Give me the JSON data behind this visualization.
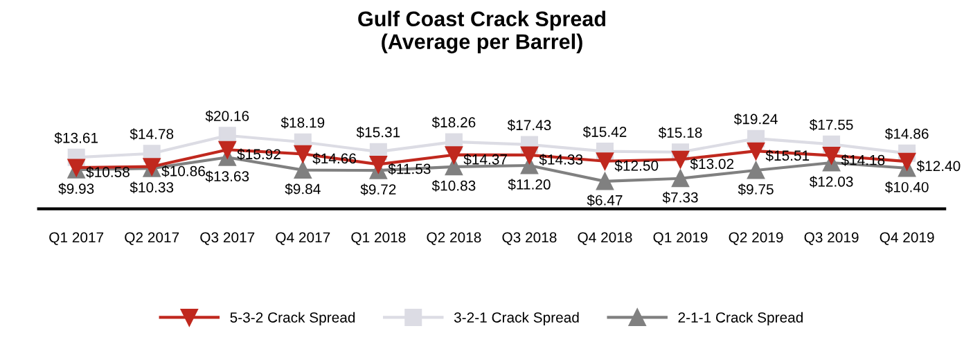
{
  "chart_data": {
    "type": "line",
    "title": "Gulf Coast Crack Spread\n(Average per Barrel)",
    "categories": [
      "Q1 2017",
      "Q2 2017",
      "Q3 2017",
      "Q4 2017",
      "Q1 2018",
      "Q2 2018",
      "Q3 2018",
      "Q4 2018",
      "Q1 2019",
      "Q2 2019",
      "Q3 2019",
      "Q4 2019"
    ],
    "grid": false,
    "legend": "bottom",
    "series": [
      {
        "name": "5-3-2 Crack Spread",
        "color": "#c0281e",
        "marker": "triangle_down",
        "values": [
          10.58,
          10.86,
          15.92,
          14.66,
          11.53,
          14.37,
          14.33,
          12.5,
          13.02,
          15.51,
          14.18,
          12.4
        ],
        "value_labels": [
          "$10.58",
          "$10.86",
          "$15.92",
          "$14.66",
          "$11.53",
          "$14.37",
          "$14.33",
          "$12.50",
          "$13.02",
          "$15.51",
          "$14.18",
          "$12.40"
        ]
      },
      {
        "name": "3-2-1 Crack Spread",
        "color": "#dcdce4",
        "marker": "square",
        "values": [
          13.61,
          14.78,
          20.16,
          18.19,
          15.31,
          18.26,
          17.43,
          15.42,
          15.18,
          19.24,
          17.55,
          14.86
        ],
        "value_labels": [
          "$13.61",
          "$14.78",
          "$20.16",
          "$18.19",
          "$15.31",
          "$18.26",
          "$17.43",
          "$15.42",
          "$15.18",
          "$19.24",
          "$17.55",
          "$14.86"
        ]
      },
      {
        "name": "2-1-1 Crack Spread",
        "color": "#808080",
        "marker": "triangle",
        "values": [
          9.93,
          10.33,
          13.63,
          9.84,
          9.72,
          10.83,
          11.2,
          6.47,
          7.33,
          9.75,
          12.03,
          10.4
        ],
        "value_labels": [
          "$9.93",
          "$10.33",
          "$13.63",
          "$9.84",
          "$9.72",
          "$10.83",
          "$11.20",
          "$6.47",
          "$7.33",
          "$9.75",
          "$12.03",
          "$10.40"
        ]
      }
    ]
  }
}
